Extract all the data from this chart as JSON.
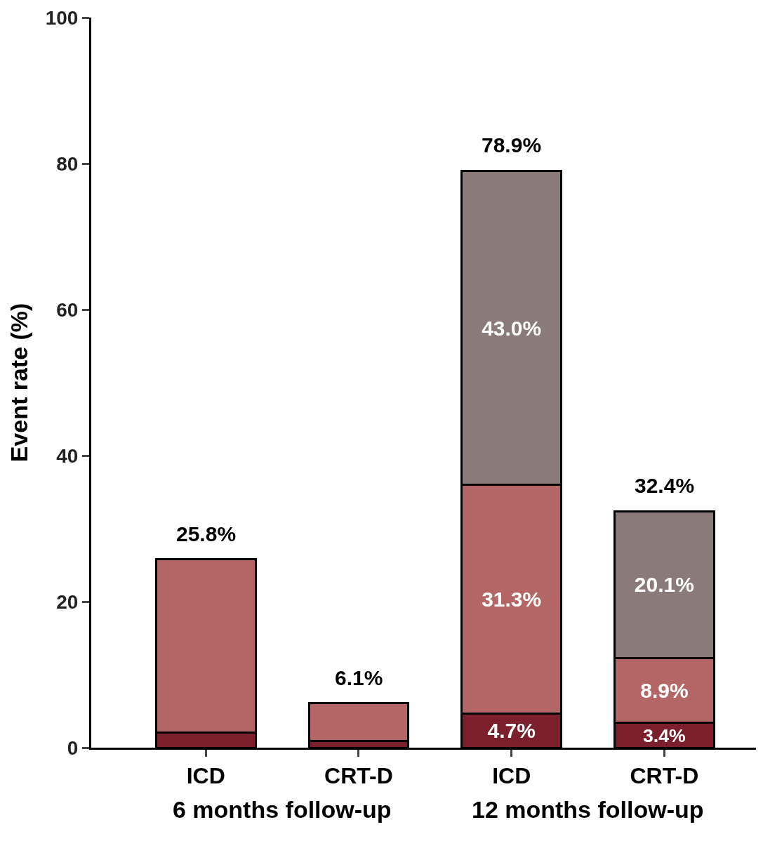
{
  "chart_data": {
    "type": "bar",
    "stacked": true,
    "ylabel": "Event rate (%)",
    "categories": [
      "ICD",
      "CRT-D",
      "ICD",
      "CRT-D"
    ],
    "series": [
      {
        "color": "#7b1f2c",
        "values": [
          2.1,
          0.9,
          4.7,
          3.4
        ],
        "value_labels": [
          null,
          null,
          "4.7%",
          "3.4%"
        ]
      },
      {
        "color": "#b46565",
        "values": [
          23.7,
          5.2,
          31.3,
          8.9
        ],
        "value_labels": [
          null,
          null,
          "31.3%",
          "8.9%"
        ]
      },
      {
        "color": "#8b7a7a",
        "values": [
          null,
          null,
          43.0,
          20.1
        ],
        "value_labels": [
          null,
          null,
          "43.0%",
          "20.1%"
        ]
      }
    ],
    "totals": [
      "25.8%",
      "6.1%",
      "78.9%",
      "32.4%"
    ],
    "ylim": [
      0,
      100
    ],
    "yticks": [
      0,
      20,
      40,
      60,
      80,
      100
    ],
    "annotations": [
      "6 months follow-up",
      "12 months follow-up"
    ]
  }
}
